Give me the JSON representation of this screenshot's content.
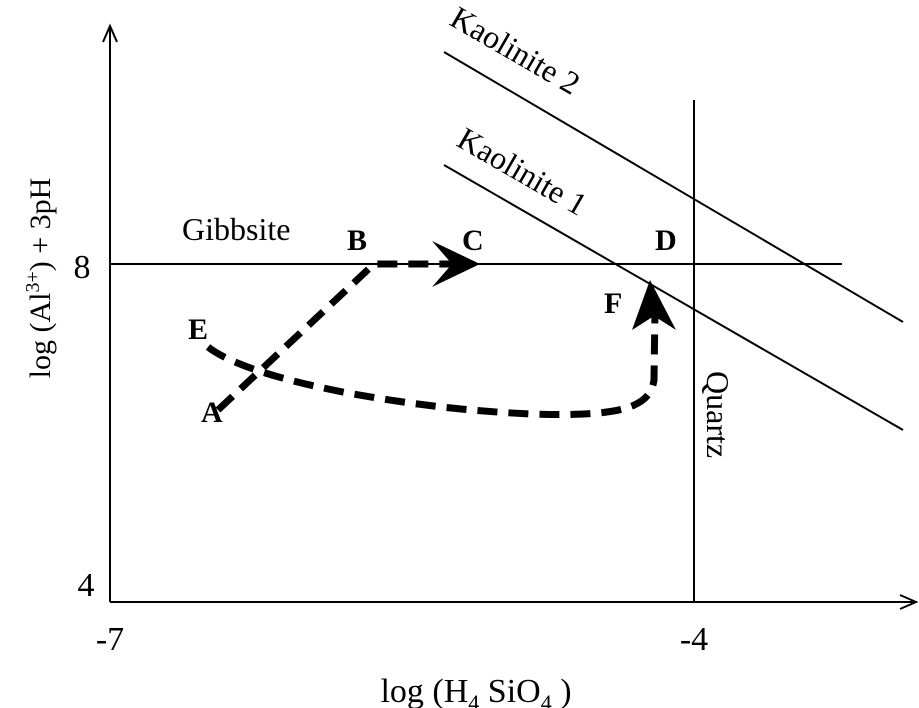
{
  "axes": {
    "x_label_prefix": "log (H",
    "x_label_sub1": "4",
    "x_label_mid": " SiO",
    "x_label_sub2": "4",
    "x_label_suffix": " )",
    "x_ticks": [
      "-7",
      "-4"
    ],
    "y_label_prefix": "log (Al",
    "y_label_sup": "3+",
    "y_label_suffix": ") + 3pH",
    "y_ticks": [
      "8",
      "4"
    ]
  },
  "regions": {
    "gibbsite": "Gibbsite",
    "kaolinite1": "Kaolinite 1",
    "kaolinite2": "Kaolinite 2",
    "quartz": "Quartz"
  },
  "points": {
    "A": "A",
    "B": "B",
    "C": "C",
    "D": "D",
    "E": "E",
    "F": "F"
  },
  "colors": {
    "ink": "#000000",
    "background": "#ffffff"
  }
}
